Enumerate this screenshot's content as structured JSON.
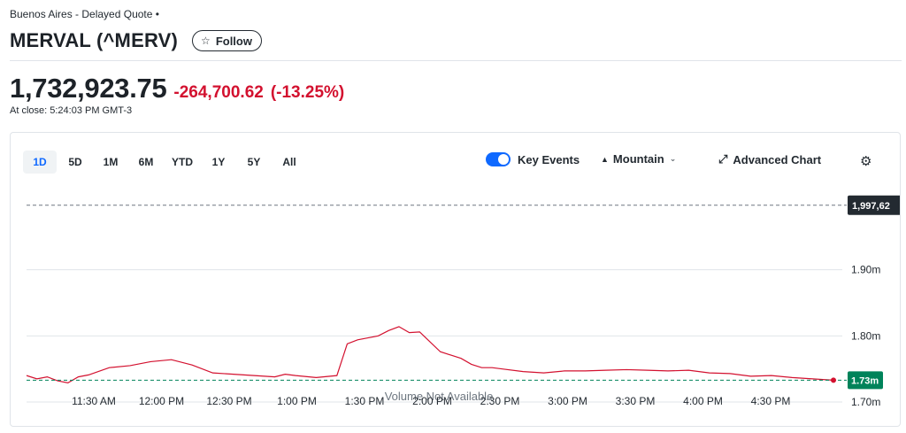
{
  "header": {
    "exchange": "Buenos Aires - Delayed Quote •",
    "title": "MERVAL (^MERV)",
    "follow_label": "Follow"
  },
  "quote": {
    "price": "1,732,923.75",
    "change": "-264,700.62",
    "change_pct": "(-13.25%)",
    "close_time": "At close: 5:24:03 PM GMT-3"
  },
  "toolbar": {
    "ranges": [
      "1D",
      "5D",
      "1M",
      "6M",
      "YTD",
      "1Y",
      "5Y",
      "All"
    ],
    "active_range": "1D",
    "key_events_label": "Key Events",
    "key_events_on": true,
    "chart_type_label": "Mountain",
    "advanced_label": "Advanced Chart"
  },
  "colors": {
    "accent": "#0f69ff",
    "negative": "#d3112f",
    "prev_close_tag": "#232a31",
    "current_tag": "#00835a"
  },
  "chart_data": {
    "type": "line",
    "ylim": [
      1.7,
      2.0
    ],
    "y_ticks": [
      1.9,
      1.8,
      1.7
    ],
    "y_tick_labels": [
      "1.90m",
      "1.80m",
      "1.70m"
    ],
    "x_tick_labels": [
      "11:30 AM",
      "12:00 PM",
      "12:30 PM",
      "1:00 PM",
      "1:30 PM",
      "2:00 PM",
      "2:30 PM",
      "3:00 PM",
      "3:30 PM",
      "4:00 PM",
      "4:30 PM"
    ],
    "prev_close": 1.9976,
    "prev_close_label": "1,997,62",
    "current_label": "1.73m",
    "annotation": "Volume Not Available",
    "x": [
      0,
      5,
      10,
      15,
      20,
      25,
      30,
      40,
      50,
      60,
      70,
      80,
      90,
      100,
      110,
      120,
      125,
      130,
      140,
      150,
      155,
      160,
      165,
      170,
      175,
      180,
      185,
      190,
      200,
      210,
      215,
      220,
      225,
      230,
      240,
      250,
      260,
      270,
      280,
      290,
      300,
      310,
      320,
      330,
      340,
      350,
      360,
      370,
      380,
      390
    ],
    "y": [
      1.74,
      1.735,
      1.738,
      1.732,
      1.729,
      1.738,
      1.741,
      1.752,
      1.755,
      1.761,
      1.764,
      1.756,
      1.744,
      1.742,
      1.74,
      1.738,
      1.742,
      1.74,
      1.737,
      1.74,
      1.788,
      1.794,
      1.797,
      1.8,
      1.808,
      1.814,
      1.805,
      1.806,
      1.776,
      1.766,
      1.757,
      1.752,
      1.752,
      1.75,
      1.746,
      1.744,
      1.747,
      1.747,
      1.748,
      1.749,
      1.748,
      1.747,
      1.748,
      1.744,
      1.743,
      1.739,
      1.74,
      1.737,
      1.735,
      1.733
    ]
  }
}
